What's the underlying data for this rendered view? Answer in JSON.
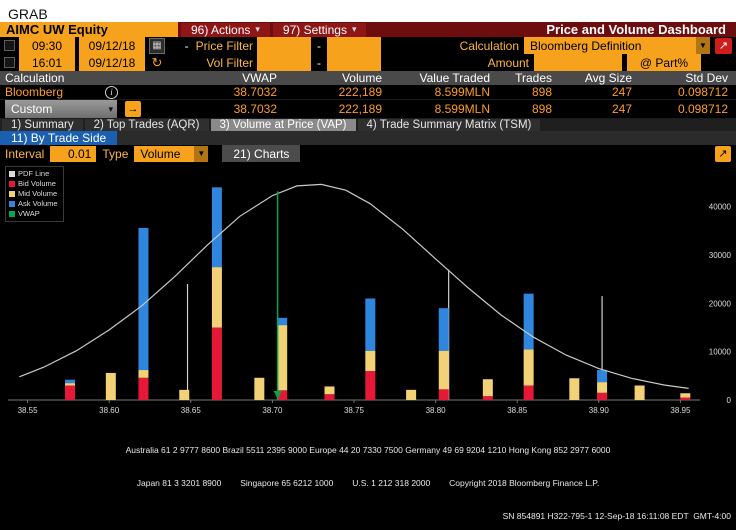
{
  "window": {
    "grab_title": "GRAB"
  },
  "colors": {
    "amber_field": "#f6a21c",
    "amber_label": "#ffb742",
    "orange_value": "#ff9d23",
    "dark_red": "#6e0d0d",
    "tab_blue": "#1a5fb0",
    "header_gray": "#4a4a4a"
  },
  "toolbar": {
    "security": "AIMC UW Equity",
    "actions_label": "96) Actions",
    "settings_label": "97) Settings",
    "title": "Price and Volume Dashboard"
  },
  "filters": {
    "row1": {
      "time": "09:30",
      "date": "09/12/18",
      "dash": "-",
      "price_filter_label": "Price Filter",
      "calculation_label": "Calculation",
      "calculation_value": "Bloomberg Definition"
    },
    "row2": {
      "time": "16:01",
      "date": "09/12/18",
      "dash": "-",
      "vol_filter_label": "Vol Filter",
      "amount_label": "Amount",
      "part_label": "@ Part%"
    }
  },
  "table": {
    "headers": [
      "Calculation",
      "VWAP",
      "Volume",
      "Value Traded",
      "Trades",
      "Avg Size",
      "Std Dev"
    ],
    "rows": [
      {
        "name": "Bloomberg",
        "vwap": "38.7032",
        "volume": "222,189",
        "value_traded": "8.599MLN",
        "trades": "898",
        "avg_size": "247",
        "std_dev": "0.098712"
      },
      {
        "name": "Custom",
        "vwap": "38.7032",
        "volume": "222,189",
        "value_traded": "8.599MLN",
        "trades": "898",
        "avg_size": "247",
        "std_dev": "0.098712"
      }
    ]
  },
  "tabs": [
    {
      "label": "1) Summary"
    },
    {
      "label": "2) Top Trades (AQR)"
    },
    {
      "label": "3) Volume at Price (VAP)"
    },
    {
      "label": "4) Trade Summary Matrix (TSM)"
    }
  ],
  "subtab": "11) By Trade Side",
  "controls": {
    "interval_label": "Interval",
    "interval_value": "0.01",
    "type_label": "Type",
    "type_value": "Volume",
    "charts_button": "21) Charts"
  },
  "chart_data": {
    "type": "bar",
    "stacked": true,
    "title": "",
    "xlim": [
      38.538,
      38.962
    ],
    "ylim": [
      0,
      48000
    ],
    "x_ticks": [
      "38.55",
      "38.60",
      "38.65",
      "38.70",
      "38.75",
      "38.80",
      "38.85",
      "38.90",
      "38.95"
    ],
    "y_ticks": [
      0,
      10000,
      20000,
      30000,
      40000
    ],
    "legend": [
      {
        "label": "PDF Line",
        "color": "#d9d9d9"
      },
      {
        "label": "Bid Volume",
        "color": "#e51937"
      },
      {
        "label": "Mid Volume",
        "color": "#f3d176"
      },
      {
        "label": "Ask Volume",
        "color": "#2e86de"
      },
      {
        "label": "VWAP",
        "color": "#00a651"
      }
    ],
    "bars": [
      {
        "price": 38.576,
        "bid": 3000,
        "mid": 500,
        "ask": 700
      },
      {
        "price": 38.601,
        "bid": 0,
        "mid": 5600,
        "ask": 0
      },
      {
        "price": 38.621,
        "bid": 4600,
        "mid": 1600,
        "ask": 29400
      },
      {
        "price": 38.646,
        "bid": 0,
        "mid": 2100,
        "ask": 0
      },
      {
        "price": 38.666,
        "bid": 15000,
        "mid": 12500,
        "ask": 16500
      },
      {
        "price": 38.692,
        "bid": 0,
        "mid": 4600,
        "ask": 0
      },
      {
        "price": 38.706,
        "bid": 2000,
        "mid": 13500,
        "ask": 1500
      },
      {
        "price": 38.735,
        "bid": 1200,
        "mid": 1600,
        "ask": 0
      },
      {
        "price": 38.76,
        "bid": 6000,
        "mid": 4200,
        "ask": 10800
      },
      {
        "price": 38.785,
        "bid": 0,
        "mid": 2100,
        "ask": 0
      },
      {
        "price": 38.805,
        "bid": 2200,
        "mid": 8000,
        "ask": 8800
      },
      {
        "price": 38.832,
        "bid": 800,
        "mid": 3500,
        "ask": 0
      },
      {
        "price": 38.857,
        "bid": 3000,
        "mid": 7500,
        "ask": 11500
      },
      {
        "price": 38.885,
        "bid": 0,
        "mid": 4500,
        "ask": 0
      },
      {
        "price": 38.902,
        "bid": 1500,
        "mid": 2200,
        "ask": 2500
      },
      {
        "price": 38.925,
        "bid": 0,
        "mid": 3000,
        "ask": 0
      },
      {
        "price": 38.953,
        "bid": 500,
        "mid": 900,
        "ask": 0
      }
    ],
    "spikes": [
      {
        "price": 38.648,
        "value": 24000
      },
      {
        "price": 38.808,
        "value": 27000
      },
      {
        "price": 38.902,
        "value": 21500
      }
    ],
    "pdf_curve": [
      [
        38.545,
        4800
      ],
      [
        38.56,
        6800
      ],
      [
        38.58,
        10200
      ],
      [
        38.6,
        14500
      ],
      [
        38.62,
        19500
      ],
      [
        38.64,
        25500
      ],
      [
        38.66,
        32000
      ],
      [
        38.68,
        38000
      ],
      [
        38.7,
        42300
      ],
      [
        38.715,
        44300
      ],
      [
        38.73,
        44600
      ],
      [
        38.745,
        43400
      ],
      [
        38.76,
        40600
      ],
      [
        38.78,
        35300
      ],
      [
        38.8,
        29200
      ],
      [
        38.82,
        23200
      ],
      [
        38.84,
        17600
      ],
      [
        38.86,
        13000
      ],
      [
        38.88,
        9300
      ],
      [
        38.9,
        6500
      ],
      [
        38.92,
        4500
      ],
      [
        38.94,
        3100
      ],
      [
        38.955,
        2400
      ]
    ],
    "vwap": 38.7032,
    "vwap_line_top": 43200,
    "colors": {
      "bid": "#e51937",
      "mid": "#f3d176",
      "ask": "#2e86de",
      "vwap": "#00a651",
      "pdf": "#c9c9c9",
      "spike": "#cfcfcf"
    }
  },
  "footer": {
    "line1": "Australia 61 2 9777 8600 Brazil 5511 2395 9000 Europe 44 20 7330 7500 Germany 49 69 9204 1210 Hong Kong 852 2977 6000",
    "line2": "Japan 81 3 3201 8900        Singapore 65 6212 1000        U.S. 1 212 318 2000        Copyright 2018 Bloomberg Finance L.P.",
    "line3": "SN 854891 H322-795-1 12-Sep-18 16:11:08 EDT  GMT-4:00"
  }
}
